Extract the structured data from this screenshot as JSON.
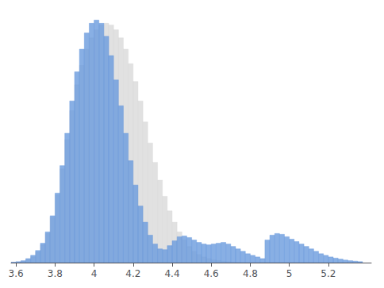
{
  "chart_data": {
    "type": "histogram",
    "bins": [
      3.575,
      3.6,
      3.625,
      3.65,
      3.675,
      3.7,
      3.725,
      3.75,
      3.775,
      3.8,
      3.825,
      3.85,
      3.875,
      3.9,
      3.925,
      3.95,
      3.975,
      4,
      4.025,
      4.05,
      4.075,
      4.1,
      4.125,
      4.15,
      4.175,
      4.2,
      4.225,
      4.25,
      4.275,
      4.3,
      4.325,
      4.35,
      4.375,
      4.4,
      4.425,
      4.45,
      4.475,
      4.5,
      4.525,
      4.55,
      4.575,
      4.6,
      4.625,
      4.65,
      4.675,
      4.7,
      4.725,
      4.75,
      4.775,
      4.8,
      4.825,
      4.85,
      4.875,
      4.9,
      4.925,
      4.95,
      4.975,
      5,
      5.025,
      5.05,
      5.075,
      5.1,
      5.125,
      5.15,
      5.175,
      5.2,
      5.225,
      5.25,
      5.275,
      5.3,
      5.325,
      5.35,
      5.375
    ],
    "series": [
      {
        "color": "#d8d8d8",
        "values": [
          0.1,
          0.3,
          0.8,
          1.8,
          3.5,
          6.5,
          11.0,
          18.0,
          28.0,
          42.0,
          58.0,
          76.0,
          94.0,
          110.0,
          122.0,
          132.0,
          139.0,
          144.0,
          147.0,
          148.0,
          147.0,
          144.0,
          139.0,
          132.0,
          123.0,
          112.0,
          100.0,
          87.0,
          74.0,
          62.0,
          51.0,
          41.0,
          32.0,
          25.0,
          19.0,
          14.0,
          10.0,
          7.0,
          5.0,
          3.5,
          2.5,
          1.8,
          1.3,
          0.9,
          0.6,
          0.4,
          0.2,
          0.1,
          0.05,
          0.02,
          0.01,
          0.005,
          0.002,
          0.001,
          0.0005,
          0.0002,
          0.0001,
          0.0,
          0.0,
          0.0,
          0.0,
          0.0,
          0.0,
          0.0,
          0.0,
          0.0,
          0.0,
          0.0,
          0.0,
          0.0,
          0.0,
          0.0
        ]
      },
      {
        "color": "#6699dd",
        "values": [
          0.3,
          0.6,
          1.2,
          2.5,
          4.5,
          7.5,
          12.0,
          19.0,
          29.0,
          43.0,
          60.0,
          80.0,
          100.0,
          118.0,
          132.0,
          142.0,
          148.0,
          150.0,
          148.0,
          140.0,
          128.0,
          113.0,
          97.0,
          80.0,
          63.0,
          48.0,
          35.0,
          25.0,
          17.0,
          11.5,
          8.5,
          8.0,
          10.5,
          13.5,
          16.0,
          16.5,
          15.5,
          14.0,
          12.5,
          11.5,
          11.0,
          11.5,
          12.0,
          12.5,
          11.5,
          10.0,
          8.5,
          7.0,
          5.5,
          4.5,
          3.5,
          2.5,
          14.0,
          17.0,
          18.0,
          17.5,
          16.0,
          14.5,
          13.0,
          11.5,
          10.0,
          8.5,
          7.0,
          5.5,
          4.5,
          3.5,
          2.8,
          2.2,
          1.6,
          1.2,
          0.9,
          0.6
        ]
      }
    ],
    "xlim": [
      3.575,
      5.42
    ],
    "xticks": [
      3.6,
      3.8,
      4,
      4.2,
      4.4,
      4.6,
      4.8,
      5,
      5.2
    ],
    "ylim": [
      0,
      157.5
    ],
    "tick_labels": "x",
    "grid": false
  }
}
